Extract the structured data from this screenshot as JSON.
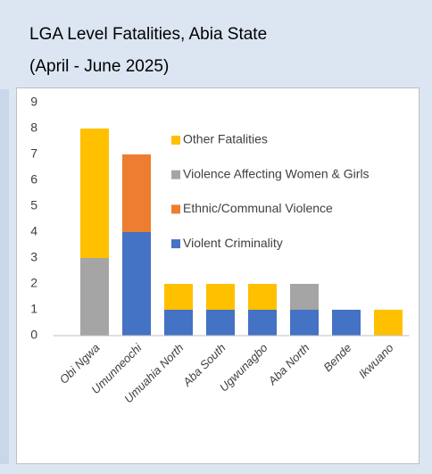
{
  "chart_data": {
    "type": "stacked_bar",
    "title": "LGA Level Fatalities, Abia State",
    "subtitle": "(April - June 2025)",
    "categories": [
      "Obi Ngwa",
      "Umunneochi",
      "Umuahia North",
      "Aba South",
      "Ugwunagbo",
      "Aba North",
      "Bende",
      "Ikwuano"
    ],
    "series": [
      {
        "name": "Violent Criminality",
        "color": "#4472c4",
        "values": [
          0,
          4,
          1,
          1,
          1,
          1,
          1,
          0
        ]
      },
      {
        "name": "Ethnic/Communal Violence",
        "color": "#ed7d31",
        "values": [
          0,
          3,
          0,
          0,
          0,
          0,
          0,
          0
        ]
      },
      {
        "name": "Violence Affecting Women & Girls",
        "color": "#a5a5a5",
        "values": [
          3,
          0,
          0,
          0,
          0,
          1,
          0,
          0
        ]
      },
      {
        "name": "Other Fatalities",
        "color": "#ffc000",
        "values": [
          5,
          0,
          1,
          1,
          1,
          0,
          0,
          1
        ]
      }
    ],
    "ylim": [
      0,
      9
    ],
    "yticks": [
      0,
      1,
      2,
      3,
      4,
      5,
      6,
      7,
      8,
      9
    ],
    "grid": false
  }
}
